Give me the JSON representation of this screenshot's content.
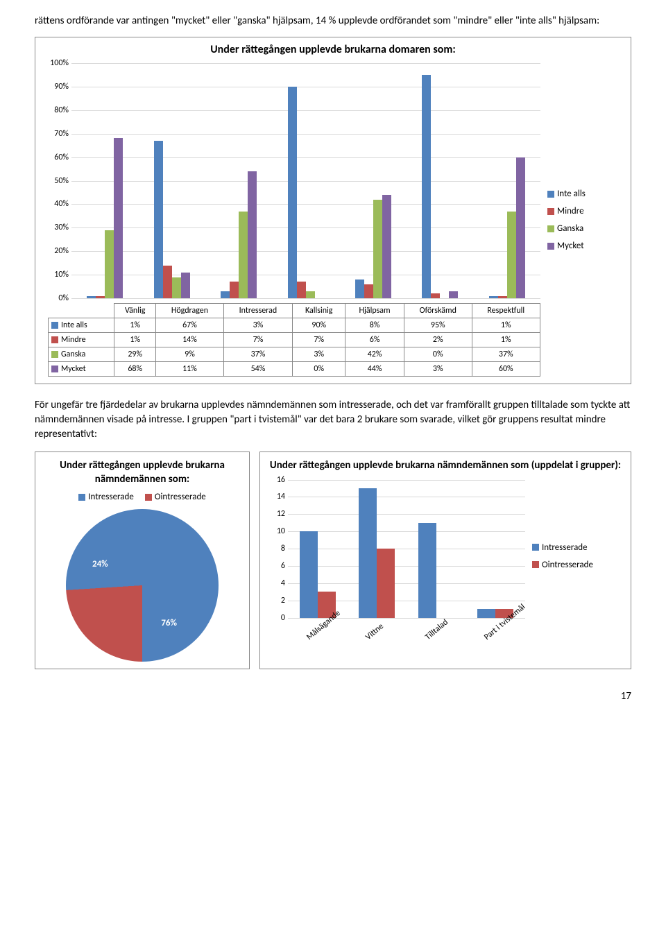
{
  "intro": "rättens ordförande var antingen \"mycket\" eller \"ganska\" hjälpsam, 14 % upplevde ordförandet som \"mindre\" eller \"inte alls\" hjälpsam:",
  "chart1": {
    "title": "Under rättegången upplevde brukarna domaren som:",
    "ylim": [
      0,
      100
    ],
    "ytick_step": 10,
    "categories": [
      "Vänlig",
      "Högdragen",
      "Intresserad",
      "Kallsinig",
      "Hjälpsam",
      "Oförskämd",
      "Respektfull"
    ],
    "series": [
      {
        "label": "Inte alls",
        "color": "#4f81bd",
        "values": [
          1,
          67,
          3,
          90,
          8,
          95,
          1
        ]
      },
      {
        "label": "Mindre",
        "color": "#c0504d",
        "values": [
          1,
          14,
          7,
          7,
          6,
          2,
          1
        ]
      },
      {
        "label": "Ganska",
        "color": "#9bbb59",
        "values": [
          29,
          9,
          37,
          3,
          42,
          0,
          37
        ]
      },
      {
        "label": "Mycket",
        "color": "#8064a2",
        "values": [
          68,
          11,
          54,
          0,
          44,
          3,
          60
        ]
      }
    ]
  },
  "midtext": "För ungefär tre fjärdedelar av brukarna upplevdes nämndemännen som intresserade, och det var framförallt gruppen tilltalade som tyckte att nämndemännen visade på intresse. I gruppen \"part i tvistemål\" var det bara 2 brukare som svarade, vilket gör gruppens resultat mindre representativt:",
  "pie": {
    "title": "Under rättegången upplevde brukarna nämndemännen som:",
    "series": [
      {
        "label": "Intresserade",
        "color": "#4f81bd",
        "value": 76
      },
      {
        "label": "Ointresserade",
        "color": "#c0504d",
        "value": 24
      }
    ]
  },
  "chart2": {
    "title": "Under rättegången upplevde brukarna nämndemännen som (uppdelat i grupper):",
    "ylim": [
      0,
      16
    ],
    "ytick_step": 2,
    "categories": [
      "Målsägande",
      "Vittne",
      "Tilltalad",
      "Part i tvistemål"
    ],
    "series": [
      {
        "label": "Intresserade",
        "color": "#4f81bd",
        "values": [
          10,
          15,
          11,
          1
        ]
      },
      {
        "label": "Ointresserade",
        "color": "#c0504d",
        "values": [
          3,
          8,
          0,
          1
        ]
      }
    ]
  },
  "page_number": "17"
}
